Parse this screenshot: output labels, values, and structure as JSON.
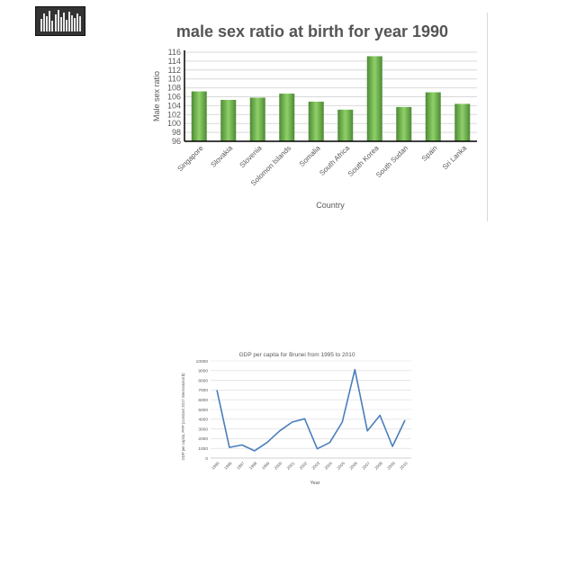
{
  "chart_data": [
    {
      "type": "bar",
      "title": "male sex ratio at birth for year 1990",
      "xlabel": "Country",
      "ylabel": "Male sex ratio",
      "categories": [
        "Singapore",
        "Slovakia",
        "Slovenia",
        "Solomon Islands",
        "Somalia",
        "South Africa",
        "South Korea",
        "South Sudan",
        "Spain",
        "Sri Lanka"
      ],
      "values": [
        107.2,
        105.3,
        105.8,
        106.7,
        104.9,
        103.1,
        115.1,
        103.7,
        107.0,
        104.4
      ],
      "ylim": [
        96,
        116
      ],
      "yticks": [
        96,
        98,
        100,
        102,
        104,
        106,
        108,
        110,
        112,
        114,
        116
      ],
      "grid": true,
      "colors": {
        "bar": "#6ab04c",
        "bar_dark": "#4c8a34",
        "bar_light": "#8fd06a"
      }
    },
    {
      "type": "line",
      "title": "GDP per capita for Brunei from 1995 to 2010",
      "xlabel": "Year",
      "ylabel": "GDP per capita, PPP (constant 2017 international $)",
      "x": [
        "1995",
        "1996",
        "1997",
        "1998",
        "1999",
        "2000",
        "2001",
        "2002",
        "2003",
        "2004",
        "2005",
        "2006",
        "2007",
        "2008",
        "2009",
        "2010"
      ],
      "values": [
        7000,
        1100,
        1350,
        750,
        1600,
        2800,
        3700,
        4050,
        950,
        1600,
        3700,
        9100,
        2800,
        4400,
        1200,
        3900
      ],
      "ylim": [
        0,
        10000
      ],
      "yticks": [
        0,
        1000,
        2000,
        3000,
        4000,
        5000,
        6000,
        7000,
        8000,
        9000,
        10000
      ],
      "grid": true,
      "colors": {
        "line": "#4a7ebb"
      }
    }
  ]
}
